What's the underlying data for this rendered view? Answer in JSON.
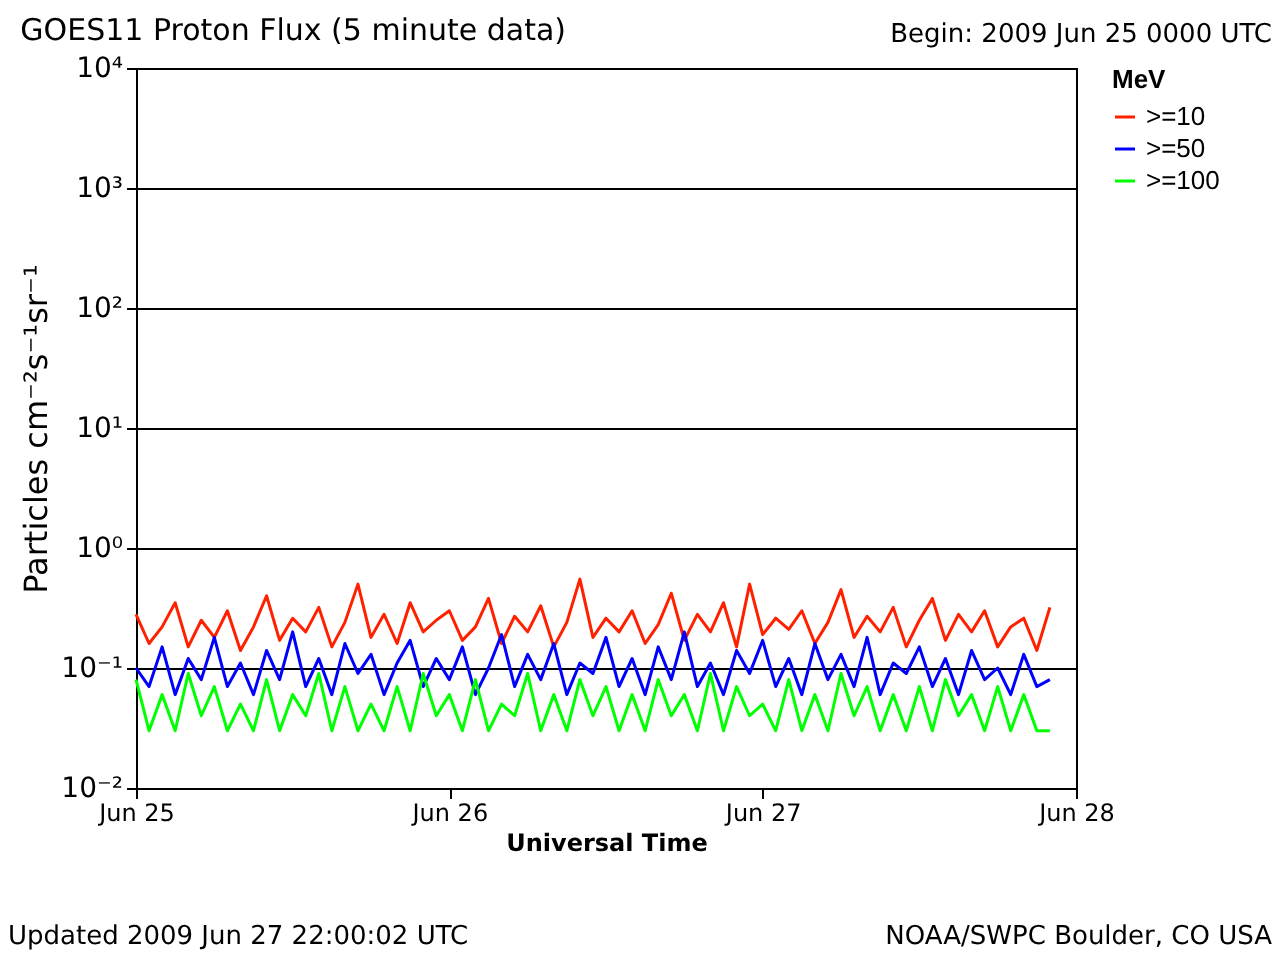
{
  "chart_data": {
    "type": "line",
    "title": "GOES11 Proton Flux (5 minute data)",
    "xlabel": "Universal Time",
    "ylabel": "Particles cm⁻²s⁻¹sr⁻¹",
    "legend_title": "MeV",
    "annotations": [
      "Begin: 2009 Jun 25 0000 UTC",
      "Updated 2009 Jun 27 22:00:02 UTC",
      "NOAA/SWPC Boulder, CO USA"
    ],
    "x": [
      "2009-06-25T00:00",
      "2009-06-25T01:00",
      "2009-06-25T02:00",
      "2009-06-25T03:00",
      "2009-06-25T04:00",
      "2009-06-25T05:00",
      "2009-06-25T06:00",
      "2009-06-25T07:00",
      "2009-06-25T08:00",
      "2009-06-25T09:00",
      "2009-06-25T10:00",
      "2009-06-25T11:00",
      "2009-06-25T12:00",
      "2009-06-25T13:00",
      "2009-06-25T14:00",
      "2009-06-25T15:00",
      "2009-06-25T16:00",
      "2009-06-25T17:00",
      "2009-06-25T18:00",
      "2009-06-25T19:00",
      "2009-06-25T20:00",
      "2009-06-25T21:00",
      "2009-06-25T22:00",
      "2009-06-25T23:00",
      "2009-06-26T00:00",
      "2009-06-26T01:00",
      "2009-06-26T02:00",
      "2009-06-26T03:00",
      "2009-06-26T04:00",
      "2009-06-26T05:00",
      "2009-06-26T06:00",
      "2009-06-26T07:00",
      "2009-06-26T08:00",
      "2009-06-26T09:00",
      "2009-06-26T10:00",
      "2009-06-26T11:00",
      "2009-06-26T12:00",
      "2009-06-26T13:00",
      "2009-06-26T14:00",
      "2009-06-26T15:00",
      "2009-06-26T16:00",
      "2009-06-26T17:00",
      "2009-06-26T18:00",
      "2009-06-26T19:00",
      "2009-06-26T20:00",
      "2009-06-26T21:00",
      "2009-06-26T22:00",
      "2009-06-26T23:00",
      "2009-06-27T00:00",
      "2009-06-27T01:00",
      "2009-06-27T02:00",
      "2009-06-27T03:00",
      "2009-06-27T04:00",
      "2009-06-27T05:00",
      "2009-06-27T06:00",
      "2009-06-27T07:00",
      "2009-06-27T08:00",
      "2009-06-27T09:00",
      "2009-06-27T10:00",
      "2009-06-27T11:00",
      "2009-06-27T12:00",
      "2009-06-27T13:00",
      "2009-06-27T14:00",
      "2009-06-27T15:00",
      "2009-06-27T16:00",
      "2009-06-27T17:00",
      "2009-06-27T18:00",
      "2009-06-27T19:00",
      "2009-06-27T20:00",
      "2009-06-27T21:00",
      "2009-06-27T22:00"
    ],
    "series": [
      {
        "name": ">=10",
        "color": "#ff2000",
        "values": [
          0.28,
          0.16,
          0.22,
          0.35,
          0.15,
          0.25,
          0.18,
          0.3,
          0.14,
          0.22,
          0.4,
          0.17,
          0.26,
          0.2,
          0.32,
          0.15,
          0.24,
          0.5,
          0.18,
          0.28,
          0.16,
          0.35,
          0.2,
          0.25,
          0.3,
          0.17,
          0.22,
          0.38,
          0.16,
          0.27,
          0.2,
          0.33,
          0.15,
          0.24,
          0.55,
          0.18,
          0.26,
          0.2,
          0.3,
          0.16,
          0.23,
          0.42,
          0.17,
          0.28,
          0.2,
          0.35,
          0.15,
          0.5,
          0.19,
          0.26,
          0.21,
          0.3,
          0.16,
          0.24,
          0.45,
          0.18,
          0.27,
          0.2,
          0.32,
          0.15,
          0.25,
          0.38,
          0.17,
          0.28,
          0.2,
          0.3,
          0.15,
          0.22,
          0.26,
          0.14,
          0.32
        ]
      },
      {
        "name": ">=50",
        "color": "#0000ff",
        "values": [
          0.1,
          0.07,
          0.15,
          0.06,
          0.12,
          0.08,
          0.18,
          0.07,
          0.11,
          0.06,
          0.14,
          0.08,
          0.2,
          0.07,
          0.12,
          0.06,
          0.16,
          0.09,
          0.13,
          0.06,
          0.11,
          0.17,
          0.07,
          0.12,
          0.08,
          0.15,
          0.06,
          0.1,
          0.19,
          0.07,
          0.13,
          0.08,
          0.16,
          0.06,
          0.11,
          0.09,
          0.18,
          0.07,
          0.12,
          0.06,
          0.15,
          0.08,
          0.2,
          0.07,
          0.11,
          0.06,
          0.14,
          0.09,
          0.17,
          0.07,
          0.12,
          0.06,
          0.16,
          0.08,
          0.13,
          0.07,
          0.18,
          0.06,
          0.11,
          0.09,
          0.15,
          0.07,
          0.12,
          0.06,
          0.14,
          0.08,
          0.1,
          0.06,
          0.13,
          0.07,
          0.08
        ]
      },
      {
        "name": ">=100",
        "color": "#00ff00",
        "values": [
          0.08,
          0.03,
          0.06,
          0.03,
          0.09,
          0.04,
          0.07,
          0.03,
          0.05,
          0.03,
          0.08,
          0.03,
          0.06,
          0.04,
          0.09,
          0.03,
          0.07,
          0.03,
          0.05,
          0.03,
          0.07,
          0.03,
          0.09,
          0.04,
          0.06,
          0.03,
          0.08,
          0.03,
          0.05,
          0.04,
          0.09,
          0.03,
          0.06,
          0.03,
          0.08,
          0.04,
          0.07,
          0.03,
          0.06,
          0.03,
          0.08,
          0.04,
          0.06,
          0.03,
          0.09,
          0.03,
          0.07,
          0.04,
          0.05,
          0.03,
          0.08,
          0.03,
          0.06,
          0.03,
          0.09,
          0.04,
          0.07,
          0.03,
          0.06,
          0.03,
          0.07,
          0.03,
          0.08,
          0.04,
          0.06,
          0.03,
          0.07,
          0.03,
          0.06,
          0.03,
          0.03
        ]
      }
    ],
    "xlim": [
      "2009-06-25T00:00",
      "2009-06-28T00:00"
    ],
    "xticks": [
      {
        "value": "2009-06-25T00:00",
        "label": "Jun 25"
      },
      {
        "value": "2009-06-26T00:00",
        "label": "Jun 26"
      },
      {
        "value": "2009-06-27T00:00",
        "label": "Jun 27"
      },
      {
        "value": "2009-06-28T00:00",
        "label": "Jun 28"
      }
    ],
    "log": "y",
    "ylim": [
      0.01,
      10000
    ],
    "yticks": [
      {
        "value": 0.01,
        "label": "10⁻²"
      },
      {
        "value": 0.1,
        "label": "10⁻¹"
      },
      {
        "value": 1,
        "label": "10⁰"
      },
      {
        "value": 10,
        "label": "10¹"
      },
      {
        "value": 100,
        "label": "10²"
      },
      {
        "value": 1000,
        "label": "10³"
      },
      {
        "value": 10000,
        "label": "10⁴"
      }
    ],
    "grid": "y",
    "legend": "right",
    "marker": "none",
    "line_style": "solid"
  }
}
